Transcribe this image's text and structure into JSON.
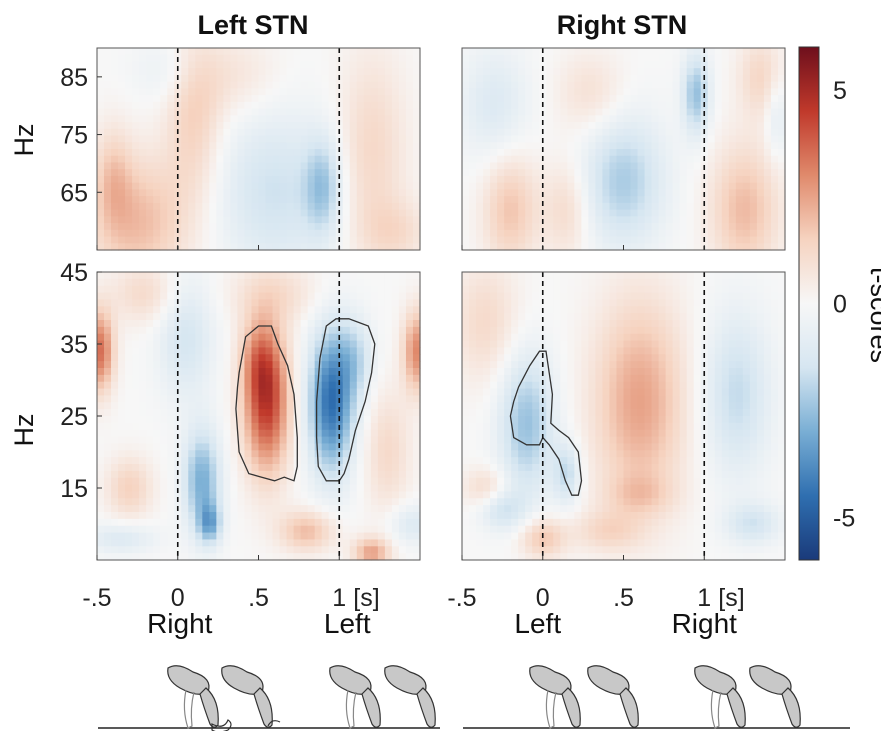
{
  "chart_data": {
    "type": "heatmap",
    "colorbar": {
      "label": "t-scores",
      "range": [
        -6,
        6
      ],
      "tick_labels": [
        "5",
        "0",
        "-5"
      ],
      "tick_values": [
        5,
        0,
        -5
      ],
      "colormap": [
        "#1a3a7a",
        "#2f6fb0",
        "#79aed4",
        "#d6e6f1",
        "#f7f7f7",
        "#f6d3c0",
        "#e08a6c",
        "#c0392b",
        "#6e0f1c"
      ]
    },
    "x_tick_labels": [
      "-.5",
      "0",
      ".5",
      "1",
      "[s]"
    ],
    "x_tick_values": [
      -0.5,
      0,
      0.5,
      1
    ],
    "xlim": [
      -0.5,
      1.5
    ],
    "event_lines": [
      0,
      1
    ],
    "panels": [
      {
        "title": "Left STN",
        "events": [
          "Right",
          "Left"
        ],
        "high": {
          "ylabel": "Hz",
          "yticks": [
            "85",
            "75",
            "65"
          ],
          "ytick_values": [
            85,
            75,
            65
          ],
          "ylim": [
            55,
            90
          ],
          "blobs": [
            {
              "t": -0.25,
              "f": 60,
              "st": 0.22,
              "sf": 8,
              "v": 2.0
            },
            {
              "t": 0.1,
              "f": 78,
              "st": 0.12,
              "sf": 10,
              "v": 1.5
            },
            {
              "t": -0.4,
              "f": 68,
              "st": 0.08,
              "sf": 6,
              "v": 1.2
            },
            {
              "t": 0.6,
              "f": 65,
              "st": 0.25,
              "sf": 10,
              "v": -1.6
            },
            {
              "t": 0.9,
              "f": 66,
              "st": 0.08,
              "sf": 6,
              "v": -2.0
            },
            {
              "t": 1.2,
              "f": 72,
              "st": 0.15,
              "sf": 12,
              "v": 1.3
            },
            {
              "t": 0.35,
              "f": 85,
              "st": 0.2,
              "sf": 5,
              "v": 0.8
            },
            {
              "t": 1.35,
              "f": 58,
              "st": 0.15,
              "sf": 4,
              "v": 1.0
            },
            {
              "t": -0.05,
              "f": 86,
              "st": 0.15,
              "sf": 4,
              "v": -0.7
            }
          ]
        },
        "low": {
          "ylabel": "Hz",
          "yticks": [
            "45",
            "35",
            "25",
            "15"
          ],
          "ytick_values": [
            45,
            35,
            25,
            15
          ],
          "ylim": [
            5,
            45
          ],
          "blobs": [
            {
              "t": -0.48,
              "f": 34,
              "st": 0.06,
              "sf": 4,
              "v": 3.5
            },
            {
              "t": 1.48,
              "f": 34,
              "st": 0.06,
              "sf": 4,
              "v": 3.0
            },
            {
              "t": 0.55,
              "f": 27,
              "st": 0.1,
              "sf": 7,
              "v": 4.5
            },
            {
              "t": 0.5,
              "f": 33,
              "st": 0.08,
              "sf": 4,
              "v": 1.5
            },
            {
              "t": 0.95,
              "f": 27,
              "st": 0.1,
              "sf": 7,
              "v": -4.5
            },
            {
              "t": 1.1,
              "f": 33,
              "st": 0.08,
              "sf": 4,
              "v": -1.5
            },
            {
              "t": 0.15,
              "f": 16,
              "st": 0.08,
              "sf": 5,
              "v": -3.0
            },
            {
              "t": 0.2,
              "f": 10,
              "st": 0.05,
              "sf": 2,
              "v": -2.5
            },
            {
              "t": 0.05,
              "f": 36,
              "st": 0.12,
              "sf": 6,
              "v": -1.5
            },
            {
              "t": 0.8,
              "f": 9,
              "st": 0.12,
              "sf": 2,
              "v": 2.0
            },
            {
              "t": 1.2,
              "f": 6,
              "st": 0.08,
              "sf": 1.5,
              "v": 2.5
            },
            {
              "t": -0.3,
              "f": 15,
              "st": 0.1,
              "sf": 3,
              "v": 1.5
            },
            {
              "t": 1.3,
              "f": 20,
              "st": 0.1,
              "sf": 6,
              "v": 1.2
            },
            {
              "t": -0.35,
              "f": 8,
              "st": 0.15,
              "sf": 1.5,
              "v": -1.2
            },
            {
              "t": 1.45,
              "f": 10,
              "st": 0.1,
              "sf": 2,
              "v": -1.2
            },
            {
              "t": -0.2,
              "f": 42,
              "st": 0.15,
              "sf": 3,
              "v": 1.2
            },
            {
              "t": 0.6,
              "f": 42,
              "st": 0.2,
              "sf": 3,
              "v": 1.0
            }
          ],
          "clusters": [
            {
              "t": [
                0.38,
                0.42,
                0.5,
                0.58,
                0.62,
                0.68,
                0.72,
                0.74,
                0.74,
                0.72,
                0.66,
                0.6,
                0.52,
                0.44,
                0.38,
                0.36,
                0.37
              ],
              "f": [
                31,
                36,
                37.5,
                37.5,
                35,
                32,
                28,
                22,
                18,
                16,
                16.5,
                16,
                16.5,
                17,
                20,
                26,
                29
              ]
            },
            {
              "t": [
                0.88,
                0.92,
                0.98,
                1.06,
                1.18,
                1.22,
                1.2,
                1.16,
                1.1,
                1.06,
                1.03,
                1.0,
                0.92,
                0.87,
                0.86,
                0.86,
                0.87
              ],
              "f": [
                33,
                37.5,
                38.5,
                38.5,
                37.5,
                35,
                31,
                27,
                23,
                19,
                17,
                16,
                16,
                18,
                22,
                27,
                30
              ]
            }
          ]
        }
      },
      {
        "title": "Right STN",
        "events": [
          "Left",
          "Right"
        ],
        "high": {
          "ylabel": "",
          "yticks": [],
          "ytick_values": [],
          "ylim": [
            55,
            90
          ],
          "blobs": [
            {
              "t": 0.5,
              "f": 67,
              "st": 0.18,
              "sf": 8,
              "v": -2.2
            },
            {
              "t": 0.95,
              "f": 82,
              "st": 0.06,
              "sf": 5,
              "v": -2.5
            },
            {
              "t": 1.25,
              "f": 62,
              "st": 0.15,
              "sf": 8,
              "v": 2.0
            },
            {
              "t": -0.2,
              "f": 62,
              "st": 0.12,
              "sf": 7,
              "v": 1.8
            },
            {
              "t": 0.15,
              "f": 62,
              "st": 0.1,
              "sf": 6,
              "v": 1.2
            },
            {
              "t": -0.3,
              "f": 80,
              "st": 0.15,
              "sf": 7,
              "v": -1.2
            },
            {
              "t": 0.3,
              "f": 82,
              "st": 0.15,
              "sf": 5,
              "v": 1.0
            },
            {
              "t": 1.35,
              "f": 85,
              "st": 0.1,
              "sf": 5,
              "v": 1.3
            },
            {
              "t": 1.45,
              "f": 78,
              "st": 0.05,
              "sf": 5,
              "v": -1.0
            }
          ]
        },
        "low": {
          "ylabel": "",
          "yticks": [],
          "ytick_values": [],
          "ylim": [
            5,
            45
          ],
          "blobs": [
            {
              "t": 0.6,
              "f": 27,
              "st": 0.2,
              "sf": 10,
              "v": 2.5
            },
            {
              "t": -0.1,
              "f": 24,
              "st": 0.12,
              "sf": 7,
              "v": -2.5
            },
            {
              "t": 0.15,
              "f": 17,
              "st": 0.06,
              "sf": 3,
              "v": -1.8
            },
            {
              "t": 1.2,
              "f": 28,
              "st": 0.15,
              "sf": 8,
              "v": -1.8
            },
            {
              "t": -0.35,
              "f": 38,
              "st": 0.15,
              "sf": 6,
              "v": 1.2
            },
            {
              "t": 0.0,
              "f": 8,
              "st": 0.1,
              "sf": 2,
              "v": 1.8
            },
            {
              "t": -0.25,
              "f": 12,
              "st": 0.1,
              "sf": 2,
              "v": -1.5
            },
            {
              "t": 0.4,
              "f": 9,
              "st": 0.15,
              "sf": 2,
              "v": 1.2
            },
            {
              "t": 1.3,
              "f": 10,
              "st": 0.12,
              "sf": 2,
              "v": -1.5
            },
            {
              "t": -0.35,
              "f": 15,
              "st": 0.1,
              "sf": 2,
              "v": 1.2
            },
            {
              "t": 0.6,
              "f": 14,
              "st": 0.15,
              "sf": 2,
              "v": 1.0
            }
          ],
          "clusters": [
            {
              "t": [
                -0.15,
                -0.08,
                -0.02,
                0.02,
                0.04,
                0.06,
                0.05,
                0.1,
                0.16,
                0.22,
                0.24,
                0.22,
                0.18,
                0.14,
                0.1,
                0.04,
                0.0,
                -0.02,
                -0.1,
                -0.18,
                -0.2,
                -0.18
              ],
              "f": [
                29,
                32,
                34,
                34,
                31,
                28,
                24,
                23,
                22,
                20,
                16,
                14,
                14,
                16,
                19,
                21,
                22,
                21,
                21,
                22,
                25,
                27
              ]
            }
          ]
        }
      }
    ]
  }
}
